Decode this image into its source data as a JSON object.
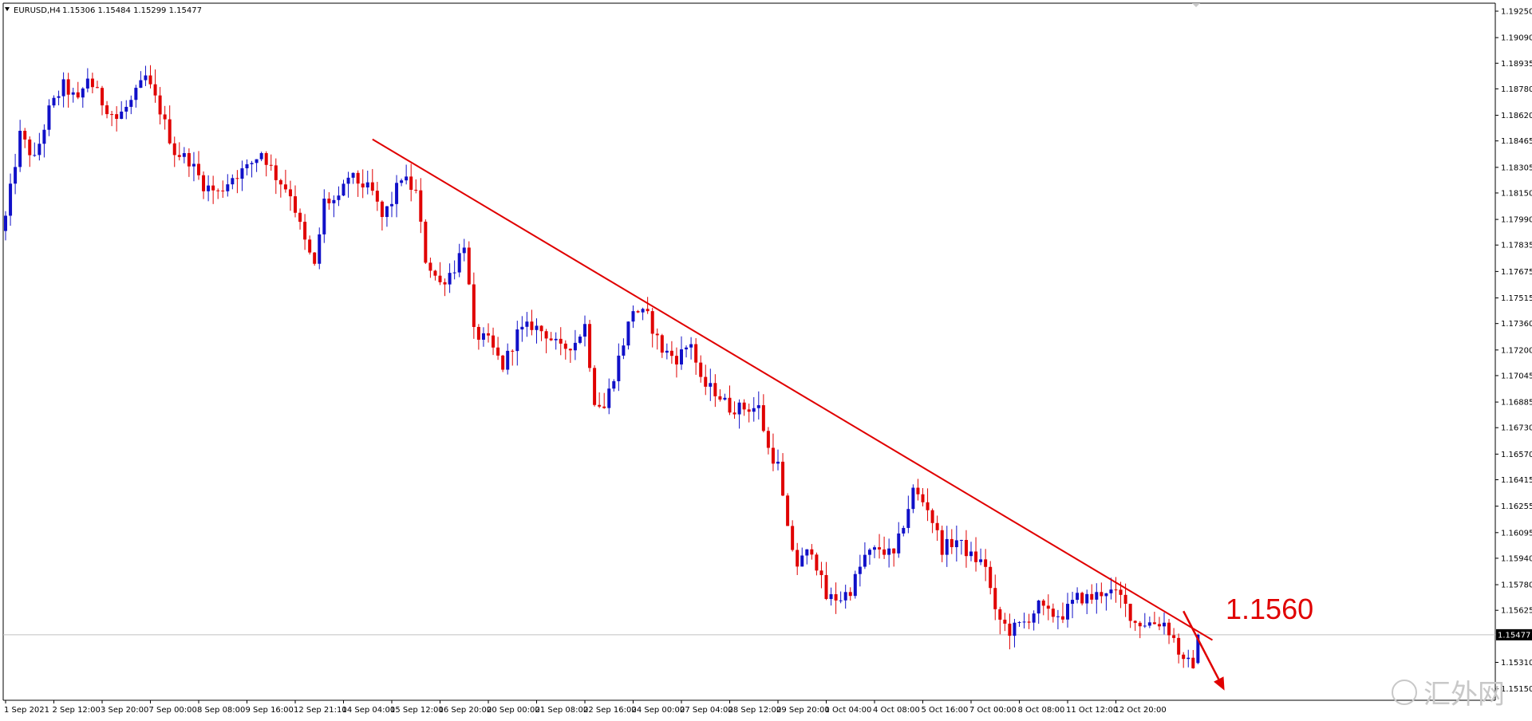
{
  "header": {
    "symbol": "EURUSD,H4",
    "ohlc": "1.15306 1.15484 1.15299 1.15477",
    "menu_icon": "triangle-down-icon"
  },
  "current_price": {
    "value": 1.15477,
    "label": "1.15477"
  },
  "annotation": {
    "text": "1.1560",
    "color": "#e00000",
    "arrow_icon": "arrow-down-right-icon",
    "trendline_start": {
      "bar": 76,
      "price": 1.18475
    },
    "trendline_end": {
      "bar": 250,
      "price": 1.15445
    },
    "arrow_start": {
      "bar": 244,
      "price": 1.1562
    },
    "arrow_end": {
      "bar": 252.5,
      "price": 1.1514
    }
  },
  "watermark": {
    "text": "汇外网",
    "icon": "watermark-logo-icon"
  },
  "colors": {
    "bull": "#1010c8",
    "bear": "#e00000",
    "trendline": "#e00000",
    "grid": "none",
    "axis": "#000000"
  },
  "chart_data": {
    "type": "candlestick",
    "title": "EURUSD,H4",
    "grid": false,
    "ylim": [
      1.151,
      1.1925
    ],
    "y_ticks": [
      "1.19250",
      "1.19090",
      "1.18935",
      "1.18780",
      "1.18620",
      "1.18465",
      "1.18305",
      "1.18150",
      "1.17990",
      "1.17835",
      "1.17675",
      "1.17515",
      "1.17360",
      "1.17200",
      "1.17045",
      "1.16885",
      "1.16730",
      "1.16570",
      "1.16415",
      "1.16255",
      "1.16095",
      "1.15940",
      "1.15780",
      "1.15625",
      "1.15310",
      "1.15150"
    ],
    "x_ticks": [
      {
        "label": "1 Sep 2021",
        "bar": 0
      },
      {
        "label": "2 Sep 12:00",
        "bar": 10
      },
      {
        "label": "3 Sep 20:00",
        "bar": 20
      },
      {
        "label": "7 Sep 00:00",
        "bar": 30
      },
      {
        "label": "8 Sep 08:00",
        "bar": 40
      },
      {
        "label": "9 Sep 16:00",
        "bar": 50
      },
      {
        "label": "12 Sep 21:10",
        "bar": 60
      },
      {
        "label": "14 Sep 04:00",
        "bar": 70
      },
      {
        "label": "15 Sep 12:00",
        "bar": 80
      },
      {
        "label": "16 Sep 20:00",
        "bar": 90
      },
      {
        "label": "20 Sep 00:00",
        "bar": 100
      },
      {
        "label": "21 Sep 08:00",
        "bar": 110
      },
      {
        "label": "22 Sep 16:00",
        "bar": 120
      },
      {
        "label": "24 Sep 00:00",
        "bar": 130
      },
      {
        "label": "27 Sep 04:00",
        "bar": 140
      },
      {
        "label": "28 Sep 12:00",
        "bar": 150
      },
      {
        "label": "29 Sep 20:00",
        "bar": 160
      },
      {
        "label": "1 Oct 04:00",
        "bar": 170
      },
      {
        "label": "4 Oct 08:00",
        "bar": 180
      },
      {
        "label": "5 Oct 16:00",
        "bar": 190
      },
      {
        "label": "7 Oct 00:00",
        "bar": 200
      },
      {
        "label": "8 Oct 08:00",
        "bar": 210
      },
      {
        "label": "11 Oct 12:00",
        "bar": 220
      },
      {
        "label": "12 Oct 20:00",
        "bar": 230
      }
    ],
    "anchors": [
      [
        0,
        1.18
      ],
      [
        3,
        1.185
      ],
      [
        6,
        1.1835
      ],
      [
        9,
        1.1865
      ],
      [
        12,
        1.188
      ],
      [
        15,
        1.187
      ],
      [
        17,
        1.1885
      ],
      [
        20,
        1.187
      ],
      [
        23,
        1.186
      ],
      [
        26,
        1.187
      ],
      [
        29,
        1.1885
      ],
      [
        32,
        1.1865
      ],
      [
        35,
        1.184
      ],
      [
        38,
        1.1835
      ],
      [
        41,
        1.182
      ],
      [
        44,
        1.1815
      ],
      [
        47,
        1.1825
      ],
      [
        50,
        1.183
      ],
      [
        53,
        1.184
      ],
      [
        56,
        1.1825
      ],
      [
        59,
        1.1815
      ],
      [
        62,
        1.1785
      ],
      [
        64,
        1.177
      ],
      [
        66,
        1.181
      ],
      [
        69,
        1.181
      ],
      [
        71,
        1.1825
      ],
      [
        74,
        1.182
      ],
      [
        76,
        1.1815
      ],
      [
        78,
        1.18
      ],
      [
        80,
        1.181
      ],
      [
        82,
        1.1825
      ],
      [
        85,
        1.1815
      ],
      [
        87,
        1.1775
      ],
      [
        90,
        1.176
      ],
      [
        93,
        1.177
      ],
      [
        95,
        1.1785
      ],
      [
        97,
        1.173
      ],
      [
        100,
        1.1725
      ],
      [
        103,
        1.171
      ],
      [
        106,
        1.173
      ],
      [
        109,
        1.1735
      ],
      [
        112,
        1.173
      ],
      [
        115,
        1.172
      ],
      [
        118,
        1.1725
      ],
      [
        120,
        1.1735
      ],
      [
        122,
        1.169
      ],
      [
        124,
        1.1685
      ],
      [
        127,
        1.1715
      ],
      [
        130,
        1.1745
      ],
      [
        133,
        1.174
      ],
      [
        136,
        1.172
      ],
      [
        139,
        1.1715
      ],
      [
        142,
        1.1725
      ],
      [
        144,
        1.17
      ],
      [
        147,
        1.1695
      ],
      [
        150,
        1.1685
      ],
      [
        153,
        1.1685
      ],
      [
        156,
        1.1685
      ],
      [
        158,
        1.166
      ],
      [
        160,
        1.165
      ],
      [
        162,
        1.161
      ],
      [
        164,
        1.159
      ],
      [
        167,
        1.16
      ],
      [
        170,
        1.157
      ],
      [
        173,
        1.157
      ],
      [
        175,
        1.1575
      ],
      [
        178,
        1.1595
      ],
      [
        181,
        1.16
      ],
      [
        184,
        1.1595
      ],
      [
        186,
        1.1615
      ],
      [
        188,
        1.1635
      ],
      [
        191,
        1.1625
      ],
      [
        194,
        1.16
      ],
      [
        197,
        1.1605
      ],
      [
        200,
        1.1595
      ],
      [
        203,
        1.159
      ],
      [
        205,
        1.156
      ],
      [
        208,
        1.155
      ],
      [
        211,
        1.1555
      ],
      [
        214,
        1.1565
      ],
      [
        216,
        1.156
      ],
      [
        219,
        1.156
      ],
      [
        222,
        1.157
      ],
      [
        225,
        1.157
      ],
      [
        228,
        1.1575
      ],
      [
        231,
        1.157
      ],
      [
        234,
        1.1555
      ],
      [
        237,
        1.1555
      ],
      [
        240,
        1.1555
      ],
      [
        242,
        1.1545
      ],
      [
        244,
        1.153
      ],
      [
        246,
        1.15306
      ],
      [
        247,
        1.15477
      ]
    ],
    "last_bar": {
      "bar": 247,
      "open": 1.15306,
      "high": 1.15484,
      "low": 1.15299,
      "close": 1.15477
    }
  }
}
